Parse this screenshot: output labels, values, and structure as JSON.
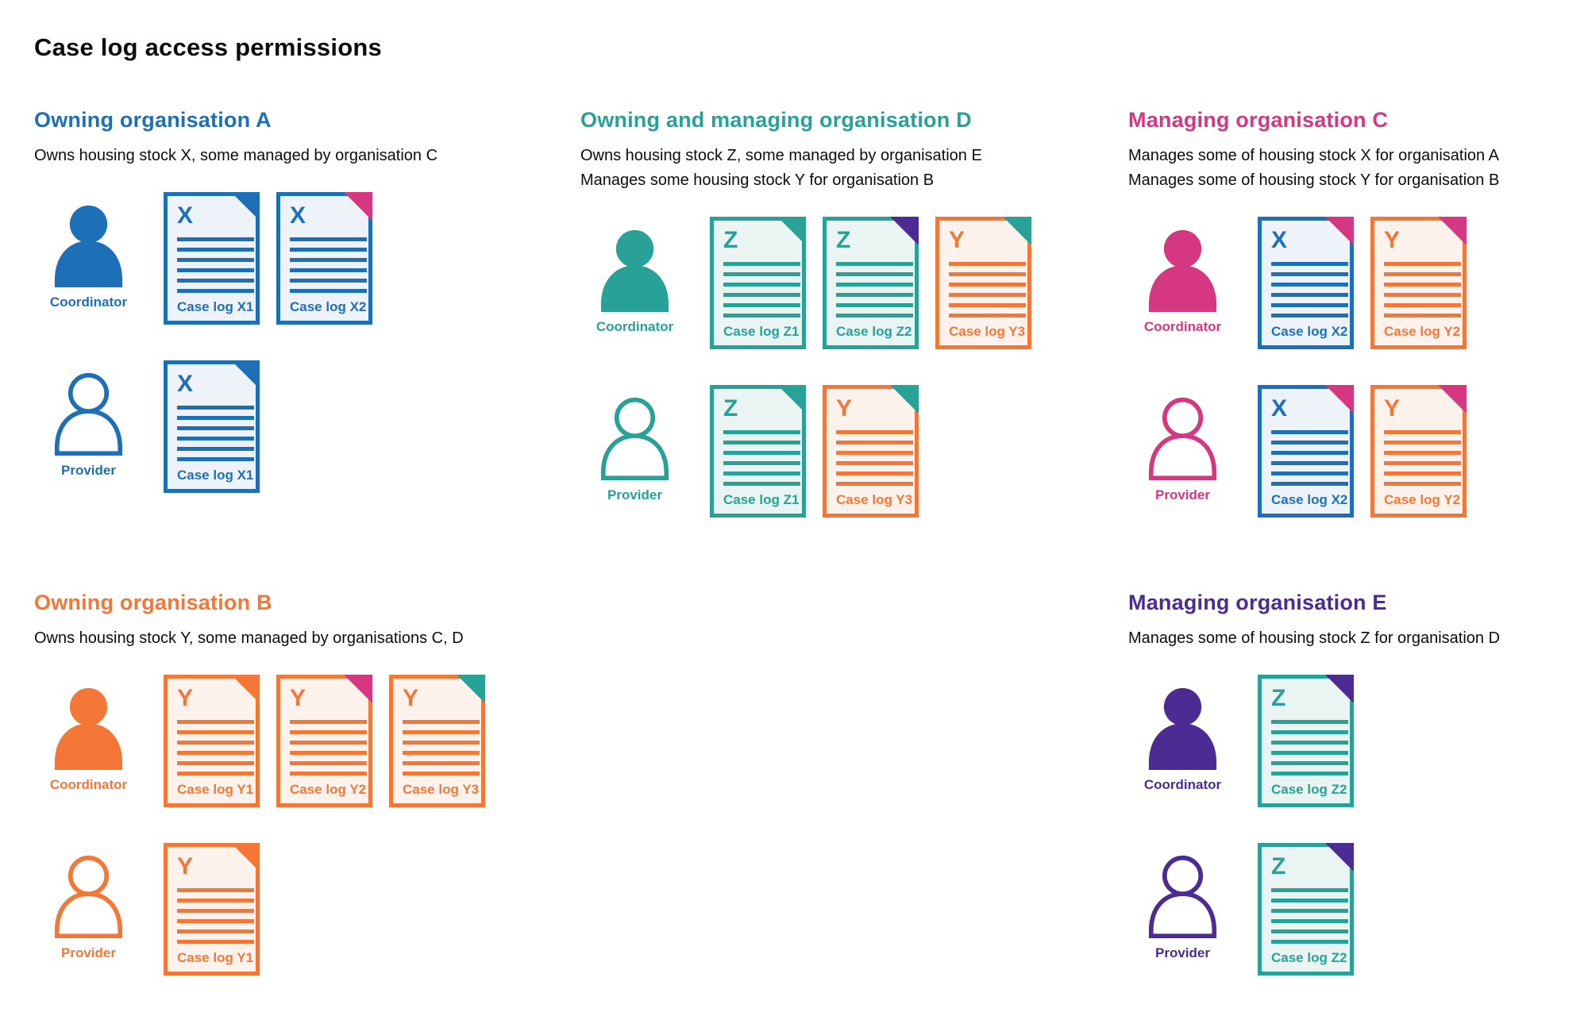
{
  "title": "Case log access permissions",
  "palette": {
    "blue": "#1d70b8",
    "teal": "#28a197",
    "pink": "#d53880",
    "orange": "#f47738",
    "purple": "#4c2c92",
    "text": "#0b0c0c",
    "doc_bg_blue": "#edf3f9",
    "doc_bg_teal": "#eaf5f3",
    "doc_bg_orange": "#fef3ec"
  },
  "sections": [
    {
      "key": "org-a",
      "title": "Owning organisation A",
      "color": "blue",
      "description": [
        "Owns housing stock X, some managed by organisation C"
      ],
      "rows": [
        {
          "role": "Coordinator",
          "person": "filled",
          "docs": [
            {
              "letter": "X",
              "label": "Case log X1",
              "stock": "blue",
              "fold": "blue"
            },
            {
              "letter": "X",
              "label": "Case log X2",
              "stock": "blue",
              "fold": "pink"
            }
          ]
        },
        {
          "role": "Provider",
          "person": "outline",
          "docs": [
            {
              "letter": "X",
              "label": "Case log X1",
              "stock": "blue",
              "fold": "blue"
            }
          ]
        }
      ]
    },
    {
      "key": "org-d",
      "title": "Owning and managing organisation D",
      "color": "teal",
      "description": [
        "Owns housing stock Z, some managed by organisation E",
        "Manages some housing stock Y for organisation B"
      ],
      "rows": [
        {
          "role": "Coordinator",
          "person": "filled",
          "docs": [
            {
              "letter": "Z",
              "label": "Case log Z1",
              "stock": "teal",
              "fold": "teal"
            },
            {
              "letter": "Z",
              "label": "Case log Z2",
              "stock": "teal",
              "fold": "purple"
            },
            {
              "letter": "Y",
              "label": "Case log Y3",
              "stock": "orange",
              "fold": "teal"
            }
          ]
        },
        {
          "role": "Provider",
          "person": "outline",
          "docs": [
            {
              "letter": "Z",
              "label": "Case log Z1",
              "stock": "teal",
              "fold": "teal"
            },
            {
              "letter": "Y",
              "label": "Case log Y3",
              "stock": "orange",
              "fold": "teal"
            }
          ]
        }
      ]
    },
    {
      "key": "org-c",
      "title": "Managing organisation C",
      "color": "pink",
      "description": [
        "Manages some of housing stock X for organisation A",
        "Manages some of housing stock Y for organisation B"
      ],
      "rows": [
        {
          "role": "Coordinator",
          "person": "filled",
          "docs": [
            {
              "letter": "X",
              "label": "Case log X2",
              "stock": "blue",
              "fold": "pink"
            },
            {
              "letter": "Y",
              "label": "Case log Y2",
              "stock": "orange",
              "fold": "pink"
            }
          ]
        },
        {
          "role": "Provider",
          "person": "outline",
          "docs": [
            {
              "letter": "X",
              "label": "Case log X2",
              "stock": "blue",
              "fold": "pink"
            },
            {
              "letter": "Y",
              "label": "Case log Y2",
              "stock": "orange",
              "fold": "pink"
            }
          ]
        }
      ]
    },
    {
      "key": "org-b",
      "title": "Owning organisation B",
      "color": "orange",
      "description": [
        "Owns housing stock Y, some managed by organisations C, D"
      ],
      "rows": [
        {
          "role": "Coordinator",
          "person": "filled",
          "docs": [
            {
              "letter": "Y",
              "label": "Case log Y1",
              "stock": "orange",
              "fold": "orange"
            },
            {
              "letter": "Y",
              "label": "Case log Y2",
              "stock": "orange",
              "fold": "pink"
            },
            {
              "letter": "Y",
              "label": "Case log Y3",
              "stock": "orange",
              "fold": "teal"
            }
          ]
        },
        {
          "role": "Provider",
          "person": "outline",
          "docs": [
            {
              "letter": "Y",
              "label": "Case log Y1",
              "stock": "orange",
              "fold": "orange"
            }
          ]
        }
      ]
    },
    {
      "key": "org-e",
      "title": "Managing organisation E",
      "color": "purple",
      "description": [
        "Manages some of housing stock Z for organisation D"
      ],
      "rows": [
        {
          "role": "Coordinator",
          "person": "filled",
          "docs": [
            {
              "letter": "Z",
              "label": "Case log Z2",
              "stock": "teal",
              "fold": "purple"
            }
          ]
        },
        {
          "role": "Provider",
          "person": "outline",
          "docs": [
            {
              "letter": "Z",
              "label": "Case log Z2",
              "stock": "teal",
              "fold": "purple"
            }
          ]
        }
      ]
    }
  ]
}
